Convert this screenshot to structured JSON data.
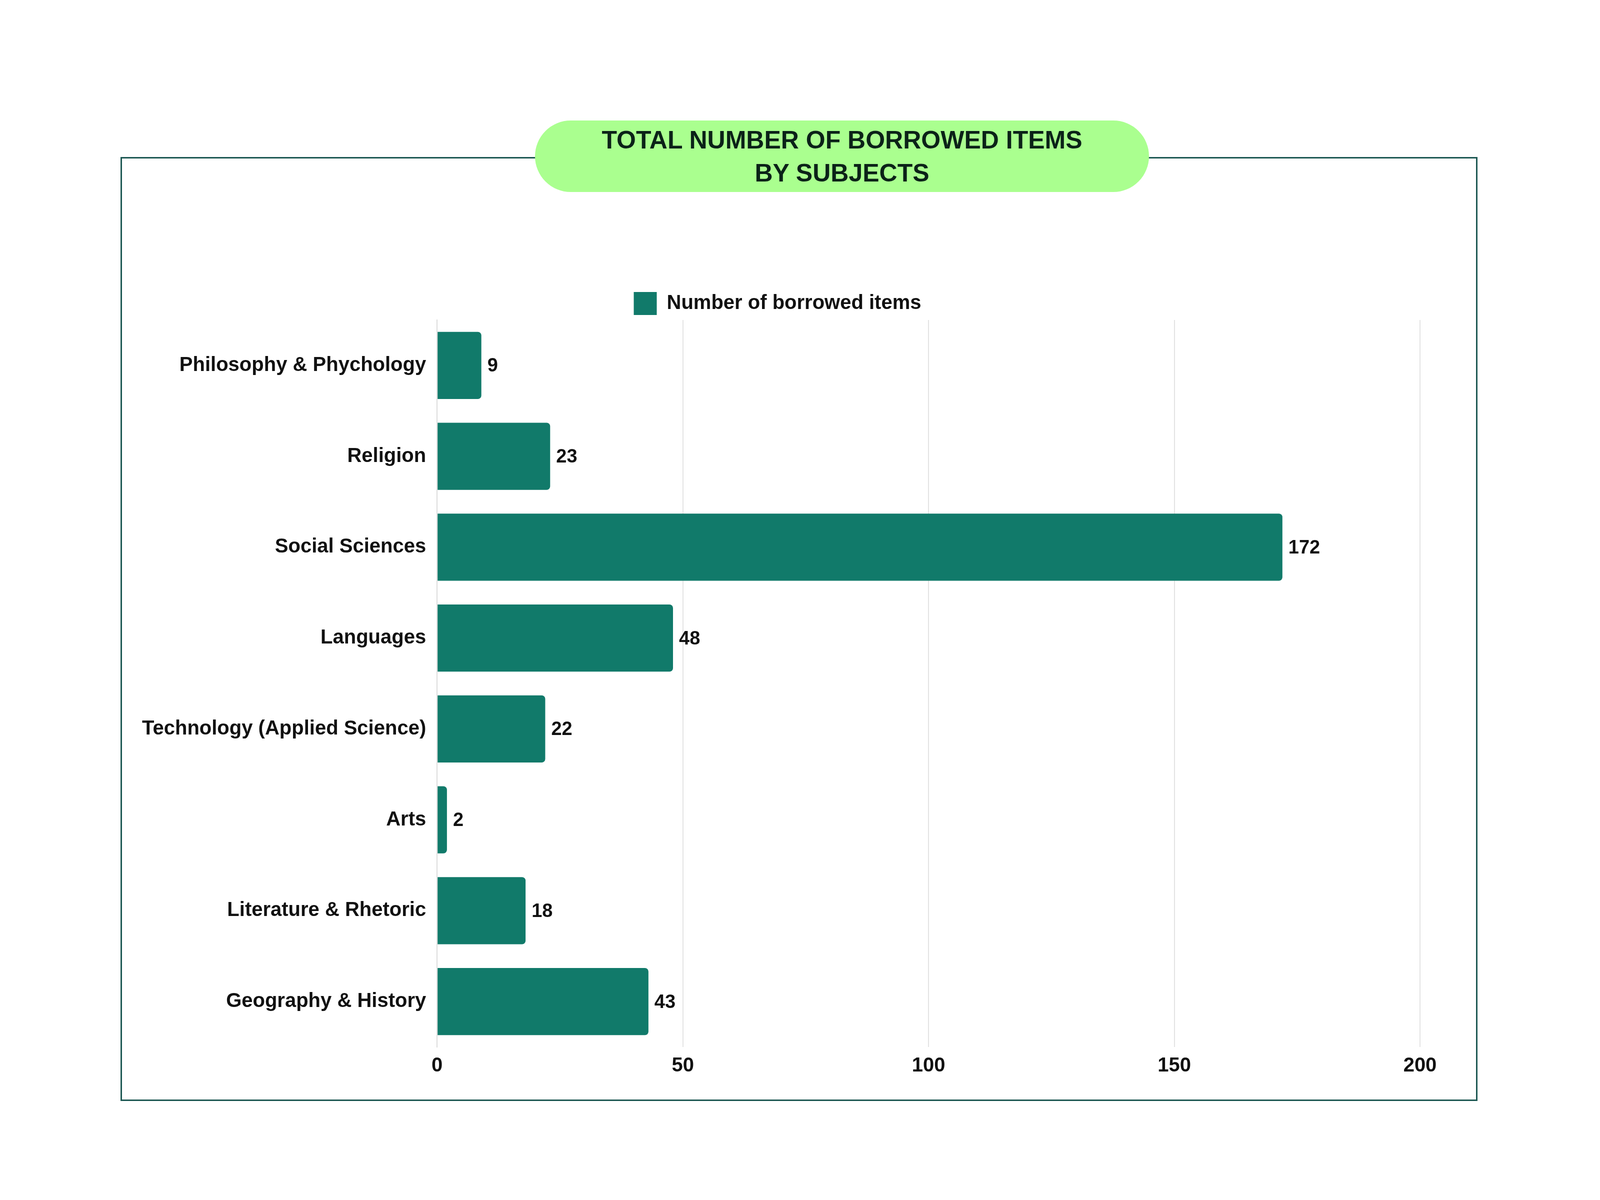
{
  "chart_data": {
    "type": "bar",
    "orientation": "horizontal",
    "title": "TOTAL NUMBER OF BORROWED ITEMS\nBY SUBJECTS",
    "categories": [
      "Philosophy & Phychology",
      "Religion",
      "Social Sciences",
      "Languages",
      "Technology (Applied Science)",
      "Arts",
      "Literature & Rhetoric",
      "Geography & History"
    ],
    "series": [
      {
        "name": "Number of borrowed items",
        "color": "#117a6a",
        "values": [
          9,
          23,
          172,
          48,
          22,
          2,
          18,
          43
        ]
      }
    ],
    "xlim": [
      0,
      200
    ],
    "xticks": [
      0,
      50,
      100,
      150,
      200
    ],
    "grid": true,
    "legend": "top",
    "data_labels": true
  }
}
